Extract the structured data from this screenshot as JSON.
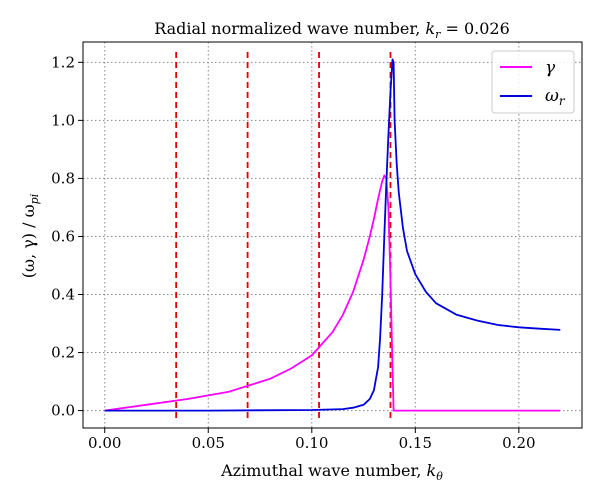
{
  "chart_data": {
    "type": "line",
    "title_prefix": "Radial normalized wave number, ",
    "title_math": "k",
    "title_math_sub": "r",
    "title_value": " = 0.026",
    "xlabel_prefix": "Azimuthal wave number, ",
    "xlabel_math": "k",
    "xlabel_math_sub": "θ",
    "ylabel_parts": [
      "(ω, γ) / ω",
      "pi"
    ],
    "xlim": [
      -0.0105,
      0.2305
    ],
    "ylim": [
      -0.06,
      1.27
    ],
    "x_ticks": [
      0.0,
      0.05,
      0.1,
      0.15,
      0.2
    ],
    "x_tick_labels": [
      "0.00",
      "0.05",
      "0.10",
      "0.15",
      "0.20"
    ],
    "y_ticks": [
      0.0,
      0.2,
      0.4,
      0.6,
      0.8,
      1.0,
      1.2
    ],
    "y_tick_labels": [
      "0.0",
      "0.2",
      "0.4",
      "0.6",
      "0.8",
      "1.0",
      "1.2"
    ],
    "grid": true,
    "legend_position": "top-right",
    "vertical_lines": {
      "x": [
        0.0345,
        0.069,
        0.1035,
        0.138
      ],
      "color": "#e00000",
      "style": "dashed"
    },
    "series": [
      {
        "name": "γ",
        "color": "#ff00ff",
        "x": [
          0.0,
          0.02,
          0.04,
          0.06,
          0.08,
          0.09,
          0.1,
          0.11,
          0.115,
          0.12,
          0.125,
          0.128,
          0.13,
          0.132,
          0.134,
          0.135,
          0.136,
          0.137,
          0.138,
          0.139,
          0.1395,
          0.14,
          0.16,
          0.18,
          0.2,
          0.22
        ],
        "y": [
          0.0,
          0.02,
          0.04,
          0.065,
          0.11,
          0.145,
          0.19,
          0.27,
          0.33,
          0.41,
          0.52,
          0.6,
          0.66,
          0.73,
          0.79,
          0.81,
          0.8,
          0.7,
          0.45,
          0.15,
          0.0,
          0.0,
          0.0,
          0.0,
          0.0,
          0.0
        ]
      },
      {
        "name": "ω",
        "name_sub": "r",
        "color": "#0000dd",
        "x": [
          0.0,
          0.05,
          0.1,
          0.115,
          0.12,
          0.125,
          0.128,
          0.13,
          0.132,
          0.133,
          0.134,
          0.135,
          0.136,
          0.137,
          0.138,
          0.139,
          0.1395,
          0.14,
          0.141,
          0.142,
          0.144,
          0.146,
          0.15,
          0.155,
          0.16,
          0.17,
          0.18,
          0.19,
          0.2,
          0.21,
          0.22
        ],
        "y": [
          0.0,
          0.0,
          0.002,
          0.005,
          0.01,
          0.02,
          0.04,
          0.07,
          0.15,
          0.25,
          0.4,
          0.6,
          0.78,
          0.95,
          1.1,
          1.21,
          1.2,
          1.0,
          0.85,
          0.75,
          0.63,
          0.55,
          0.47,
          0.41,
          0.37,
          0.33,
          0.31,
          0.295,
          0.287,
          0.282,
          0.278
        ]
      }
    ]
  }
}
